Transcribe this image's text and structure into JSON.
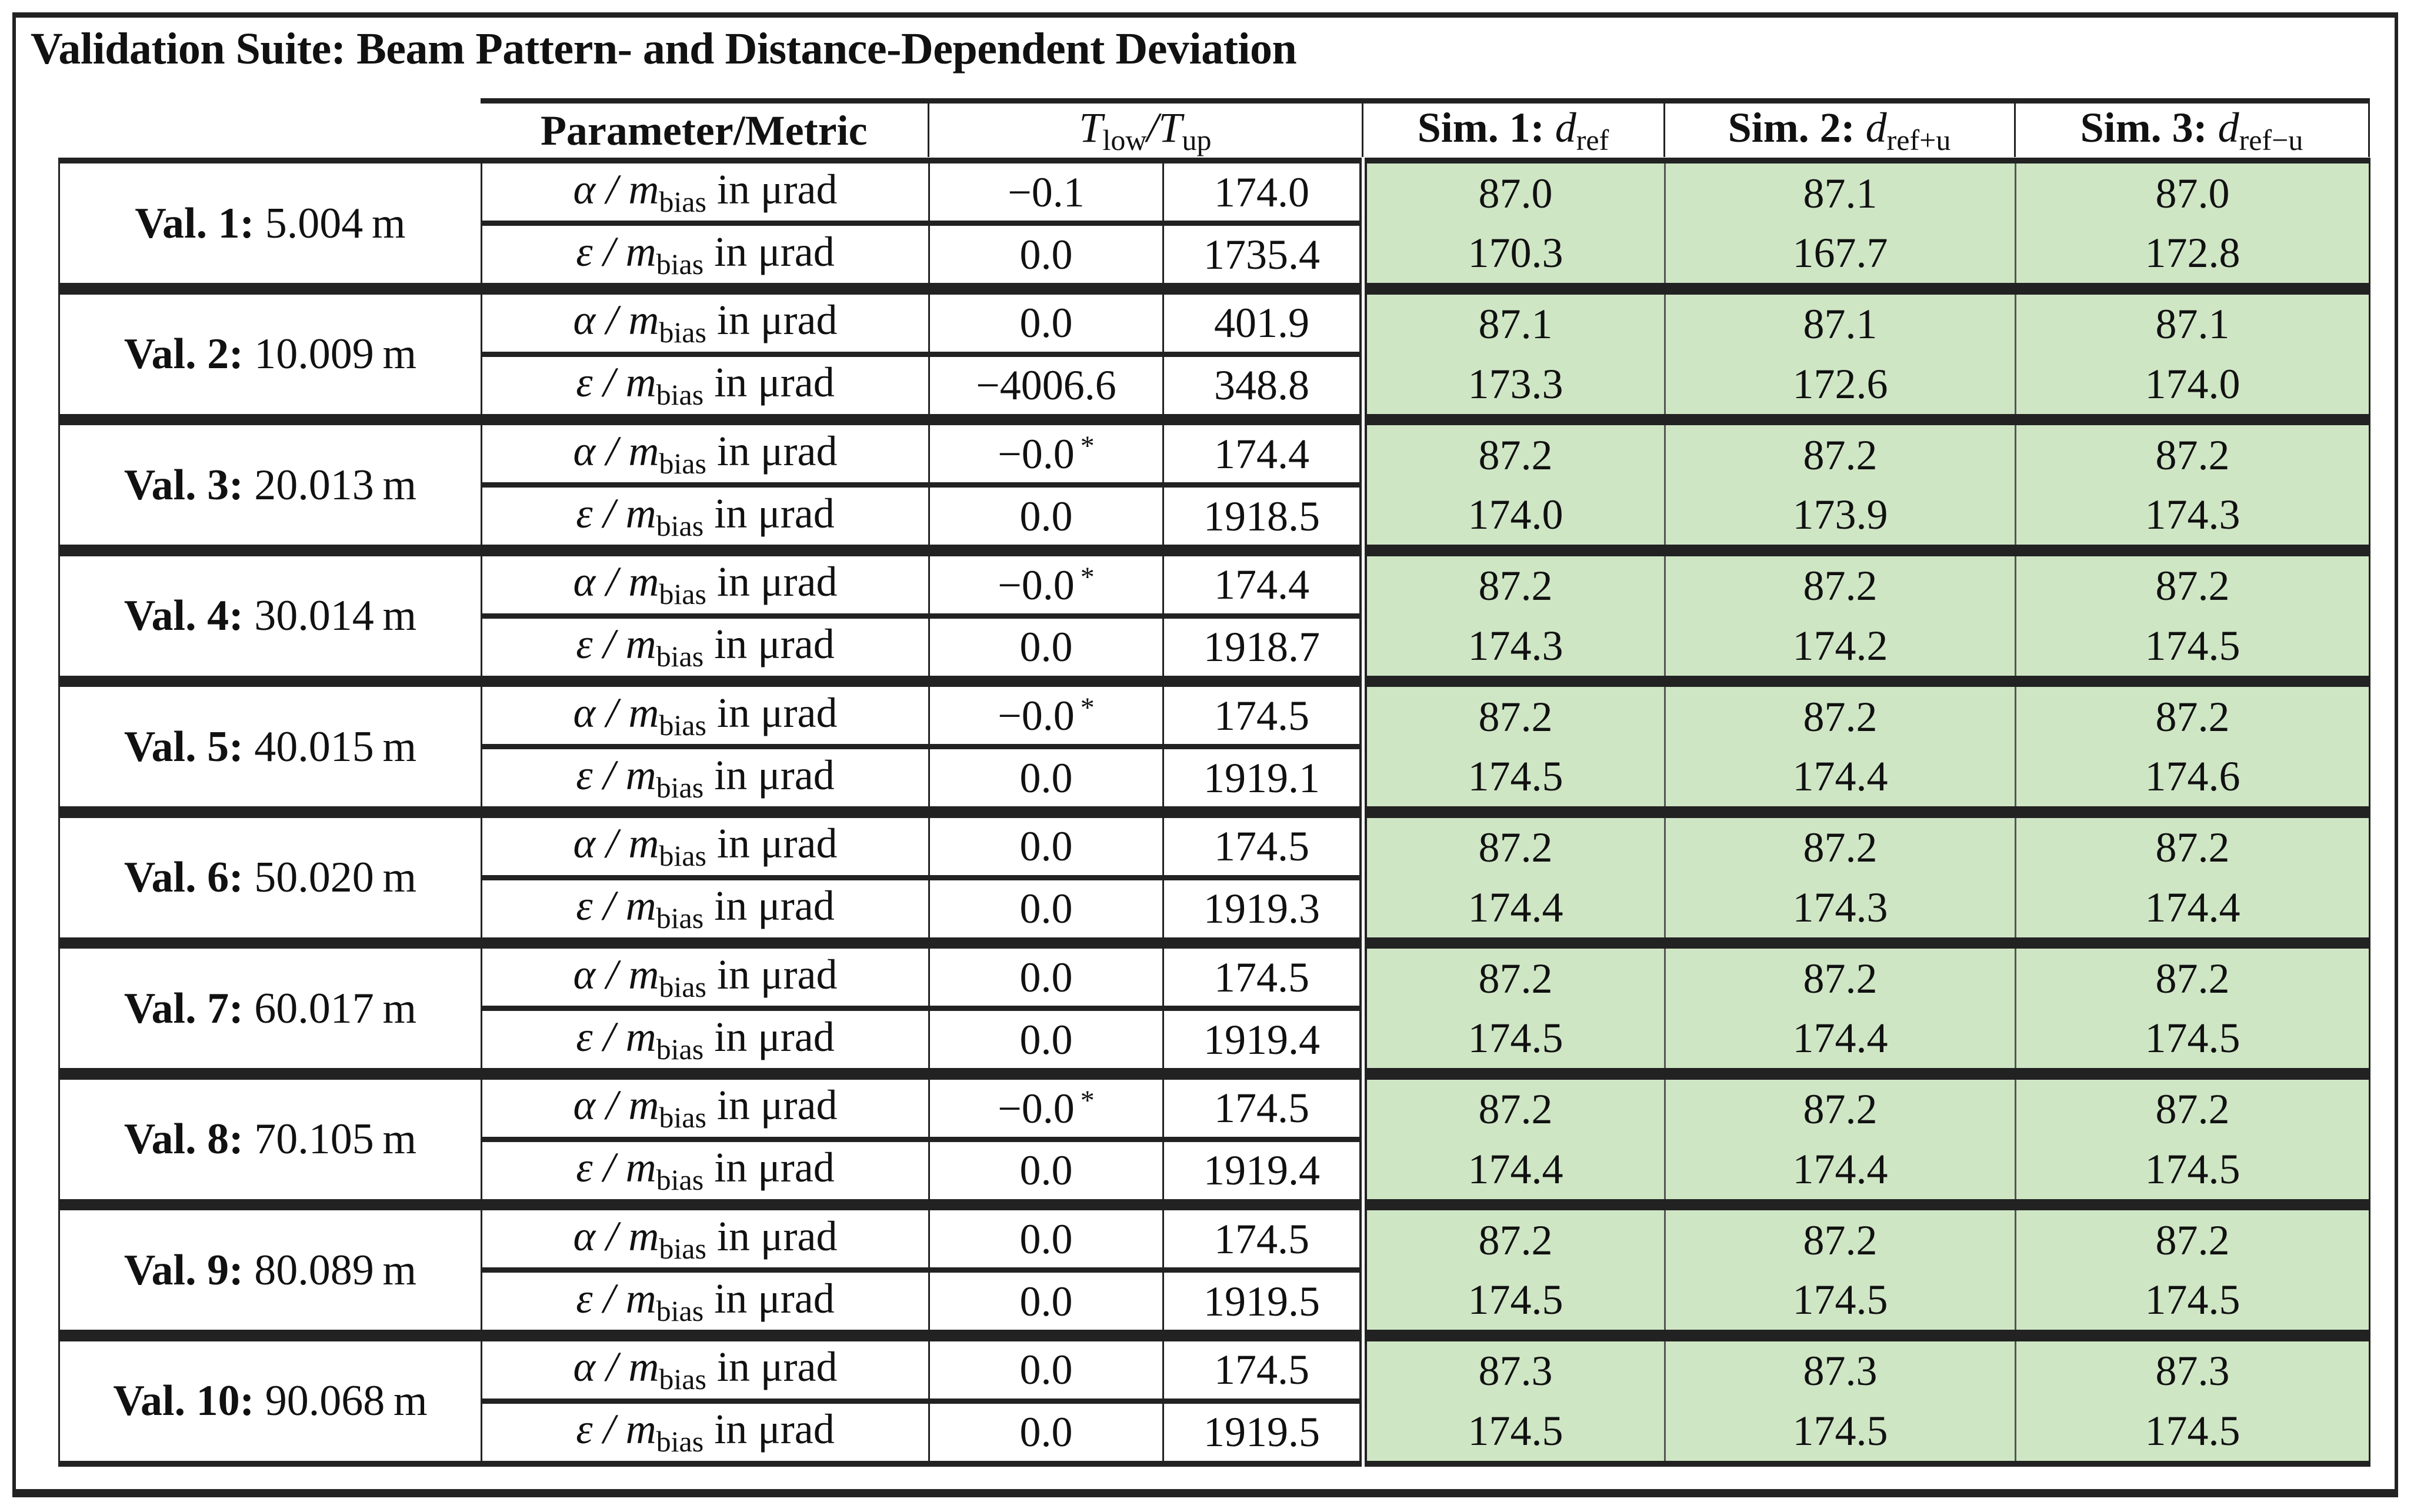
{
  "title": "Validation Suite: Beam Pattern- and Distance-Dependent Deviation",
  "header": {
    "metric": "Parameter/Metric",
    "threshold": {
      "t1": "T",
      "s1": "low",
      "slash": "/",
      "t2": "T",
      "s2": "up"
    },
    "sims": [
      {
        "label": "Sim. 1:",
        "var": "d",
        "sub": "ref"
      },
      {
        "label": "Sim. 2:",
        "var": "d",
        "sub": "ref+u"
      },
      {
        "label": "Sim. 3:",
        "var": "d",
        "sub": "ref−u"
      }
    ]
  },
  "metrics": [
    {
      "symbol": "α",
      "slash": " / ",
      "m": "m",
      "sub": "bias",
      "unit": " in μrad"
    },
    {
      "symbol": "ε",
      "slash": " / ",
      "m": "m",
      "sub": "bias",
      "unit": " in μrad"
    }
  ],
  "highlight_color": "#cfe6c5",
  "groups": [
    {
      "name": "Val. 1:",
      "dist": "5.004 m",
      "rows": [
        {
          "tlow": "−0.1",
          "star": "",
          "tup": "174.0",
          "sims": [
            "87.0",
            "87.1",
            "87.0"
          ]
        },
        {
          "tlow": "0.0",
          "star": "",
          "tup": "1735.4",
          "sims": [
            "170.3",
            "167.7",
            "172.8"
          ]
        }
      ]
    },
    {
      "name": "Val. 2:",
      "dist": "10.009 m",
      "rows": [
        {
          "tlow": "0.0",
          "star": "",
          "tup": "401.9",
          "sims": [
            "87.1",
            "87.1",
            "87.1"
          ]
        },
        {
          "tlow": "−4006.6",
          "star": "",
          "tup": "348.8",
          "sims": [
            "173.3",
            "172.6",
            "174.0"
          ]
        }
      ]
    },
    {
      "name": "Val. 3:",
      "dist": "20.013 m",
      "rows": [
        {
          "tlow": "−0.0",
          "star": "*",
          "tup": "174.4",
          "sims": [
            "87.2",
            "87.2",
            "87.2"
          ]
        },
        {
          "tlow": "0.0",
          "star": "",
          "tup": "1918.5",
          "sims": [
            "174.0",
            "173.9",
            "174.3"
          ]
        }
      ]
    },
    {
      "name": "Val. 4:",
      "dist": "30.014 m",
      "rows": [
        {
          "tlow": "−0.0",
          "star": "*",
          "tup": "174.4",
          "sims": [
            "87.2",
            "87.2",
            "87.2"
          ]
        },
        {
          "tlow": "0.0",
          "star": "",
          "tup": "1918.7",
          "sims": [
            "174.3",
            "174.2",
            "174.5"
          ]
        }
      ]
    },
    {
      "name": "Val. 5:",
      "dist": "40.015 m",
      "rows": [
        {
          "tlow": "−0.0",
          "star": "*",
          "tup": "174.5",
          "sims": [
            "87.2",
            "87.2",
            "87.2"
          ]
        },
        {
          "tlow": "0.0",
          "star": "",
          "tup": "1919.1",
          "sims": [
            "174.5",
            "174.4",
            "174.6"
          ]
        }
      ]
    },
    {
      "name": "Val. 6:",
      "dist": "50.020 m",
      "rows": [
        {
          "tlow": "0.0",
          "star": "",
          "tup": "174.5",
          "sims": [
            "87.2",
            "87.2",
            "87.2"
          ]
        },
        {
          "tlow": "0.0",
          "star": "",
          "tup": "1919.3",
          "sims": [
            "174.4",
            "174.3",
            "174.4"
          ]
        }
      ]
    },
    {
      "name": "Val. 7:",
      "dist": "60.017 m",
      "rows": [
        {
          "tlow": "0.0",
          "star": "",
          "tup": "174.5",
          "sims": [
            "87.2",
            "87.2",
            "87.2"
          ]
        },
        {
          "tlow": "0.0",
          "star": "",
          "tup": "1919.4",
          "sims": [
            "174.5",
            "174.4",
            "174.5"
          ]
        }
      ]
    },
    {
      "name": "Val. 8:",
      "dist": "70.105 m",
      "rows": [
        {
          "tlow": "−0.0",
          "star": "*",
          "tup": "174.5",
          "sims": [
            "87.2",
            "87.2",
            "87.2"
          ]
        },
        {
          "tlow": "0.0",
          "star": "",
          "tup": "1919.4",
          "sims": [
            "174.4",
            "174.4",
            "174.5"
          ]
        }
      ]
    },
    {
      "name": "Val. 9:",
      "dist": "80.089 m",
      "rows": [
        {
          "tlow": "0.0",
          "star": "",
          "tup": "174.5",
          "sims": [
            "87.2",
            "87.2",
            "87.2"
          ]
        },
        {
          "tlow": "0.0",
          "star": "",
          "tup": "1919.5",
          "sims": [
            "174.5",
            "174.5",
            "174.5"
          ]
        }
      ]
    },
    {
      "name": "Val. 10:",
      "dist": "90.068 m",
      "rows": [
        {
          "tlow": "0.0",
          "star": "",
          "tup": "174.5",
          "sims": [
            "87.3",
            "87.3",
            "87.3"
          ]
        },
        {
          "tlow": "0.0",
          "star": "",
          "tup": "1919.5",
          "sims": [
            "174.5",
            "174.5",
            "174.5"
          ]
        }
      ]
    }
  ]
}
